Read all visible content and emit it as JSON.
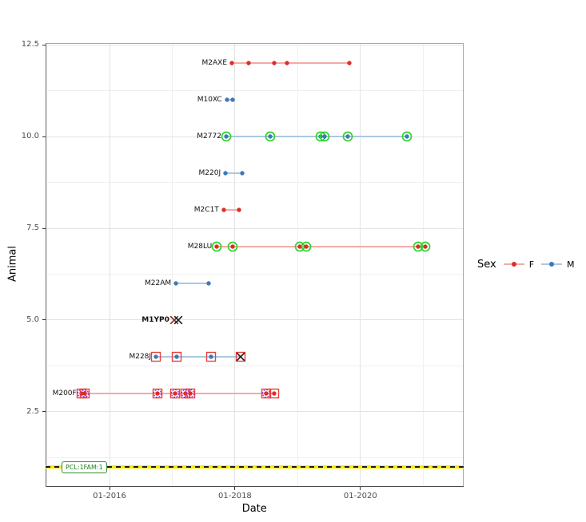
{
  "chart_data": {
    "type": "scatter",
    "title": "",
    "xlabel": "Date",
    "ylabel": "Animal",
    "x_domain": [
      2014.98,
      2021.64
    ],
    "y_domain": [
      0.45,
      12.55
    ],
    "x_ticks": [
      {
        "label": "01-2016",
        "value": 2016
      },
      {
        "label": "01-2018",
        "value": 2018
      },
      {
        "label": "01-2020",
        "value": 2020
      }
    ],
    "y_ticks": [
      {
        "label": "2.5",
        "value": 2.5
      },
      {
        "label": "5.0",
        "value": 5.0
      },
      {
        "label": "7.5",
        "value": 7.5
      },
      {
        "label": "10.0",
        "value": 10.0
      },
      {
        "label": "12.5",
        "value": 12.5
      }
    ],
    "grid": true,
    "legend": {
      "title": "Sex",
      "position": "right",
      "entries": [
        {
          "label": "F",
          "dot_color": "#de2d26",
          "line_color": "#f4aba7"
        },
        {
          "label": "M",
          "dot_color": "#3d79b8",
          "line_color": "#abc8e2"
        }
      ]
    },
    "colors": {
      "F_dot": "#de2d26",
      "F_line": "#f4aba7",
      "M_dot": "#3d79b8",
      "M_line": "#abc8e2",
      "green_ring": "#2ed32e",
      "red_square": "#e8413c",
      "purple_ring": "#a22cc8",
      "black_x": "#1a1a1a",
      "darkred_x": "#8b2323"
    },
    "reference_line": {
      "y": 1,
      "label": "PCL:1FAM:1",
      "line_color": "#ffe900",
      "dash_color": "#1b1b1b",
      "label_text_color": "#1e7d1e",
      "label_border_color": "#2f8f2f"
    },
    "series": [
      {
        "name": "M2AXE",
        "animal": 12,
        "sex": "F",
        "points": [
          {
            "x": 2017.95
          },
          {
            "x": 2018.22
          },
          {
            "x": 2018.62
          },
          {
            "x": 2018.83
          },
          {
            "x": 2019.83
          }
        ]
      },
      {
        "name": "M10XC",
        "animal": 11,
        "sex": "M",
        "points": [
          {
            "x": 2017.87
          },
          {
            "x": 2017.96
          }
        ]
      },
      {
        "name": "M2772",
        "animal": 10,
        "sex": "M",
        "points": [
          {
            "x": 2017.86,
            "green_ring": true
          },
          {
            "x": 2018.56,
            "green_ring": true
          },
          {
            "x": 2019.37,
            "green_ring": true
          },
          {
            "x": 2019.43,
            "green_ring": true
          },
          {
            "x": 2019.8,
            "green_ring": true
          },
          {
            "x": 2020.74,
            "green_ring": true
          }
        ]
      },
      {
        "name": "M220J",
        "animal": 9,
        "sex": "M",
        "points": [
          {
            "x": 2017.85
          },
          {
            "x": 2018.11
          }
        ]
      },
      {
        "name": "M2C1T",
        "animal": 8,
        "sex": "F",
        "points": [
          {
            "x": 2017.82
          },
          {
            "x": 2018.06
          }
        ]
      },
      {
        "name": "M28LU",
        "animal": 7,
        "sex": "F",
        "points": [
          {
            "x": 2017.71,
            "green_ring": true
          },
          {
            "x": 2017.96,
            "green_ring": true
          },
          {
            "x": 2019.03,
            "green_ring": true
          },
          {
            "x": 2019.13,
            "green_ring": true
          },
          {
            "x": 2020.92,
            "green_ring": true
          },
          {
            "x": 2021.04,
            "green_ring": true
          }
        ]
      },
      {
        "name": "M22AM",
        "animal": 6,
        "sex": "M",
        "points": [
          {
            "x": 2017.06
          },
          {
            "x": 2017.58
          }
        ]
      },
      {
        "name": "M1YP0",
        "animal": 5,
        "sex": "F",
        "bold_label": true,
        "no_line": true,
        "points": [
          {
            "x": 2017.03,
            "marker": "x",
            "x_color": "#8b2323"
          },
          {
            "x": 2017.09,
            "marker": "x",
            "x_color": "#1a1a1a"
          }
        ]
      },
      {
        "name": "M228J",
        "animal": 4,
        "sex": "M",
        "points": [
          {
            "x": 2016.74,
            "red_square": true
          },
          {
            "x": 2017.07,
            "red_square": true
          },
          {
            "x": 2017.62,
            "red_square": true
          },
          {
            "x": 2018.09,
            "marker": "x",
            "x_color": "#1a1a1a",
            "red_square": true
          }
        ]
      },
      {
        "name": "M200F",
        "animal": 3,
        "sex": "F",
        "points": [
          {
            "x": 2015.55,
            "red_square": true,
            "purple_ring": true
          },
          {
            "x": 2015.61,
            "red_square": true,
            "purple_ring": true
          },
          {
            "x": 2016.76,
            "red_square": true,
            "purple_ring": true
          },
          {
            "x": 2017.04,
            "red_square": true,
            "purple_ring": true
          },
          {
            "x": 2017.21,
            "red_square": true,
            "purple_ring": true
          },
          {
            "x": 2017.29,
            "red_square": true,
            "purple_ring": true
          },
          {
            "x": 2018.5,
            "red_square": true,
            "purple_ring": true
          },
          {
            "x": 2018.63,
            "red_square": true
          }
        ]
      }
    ]
  }
}
